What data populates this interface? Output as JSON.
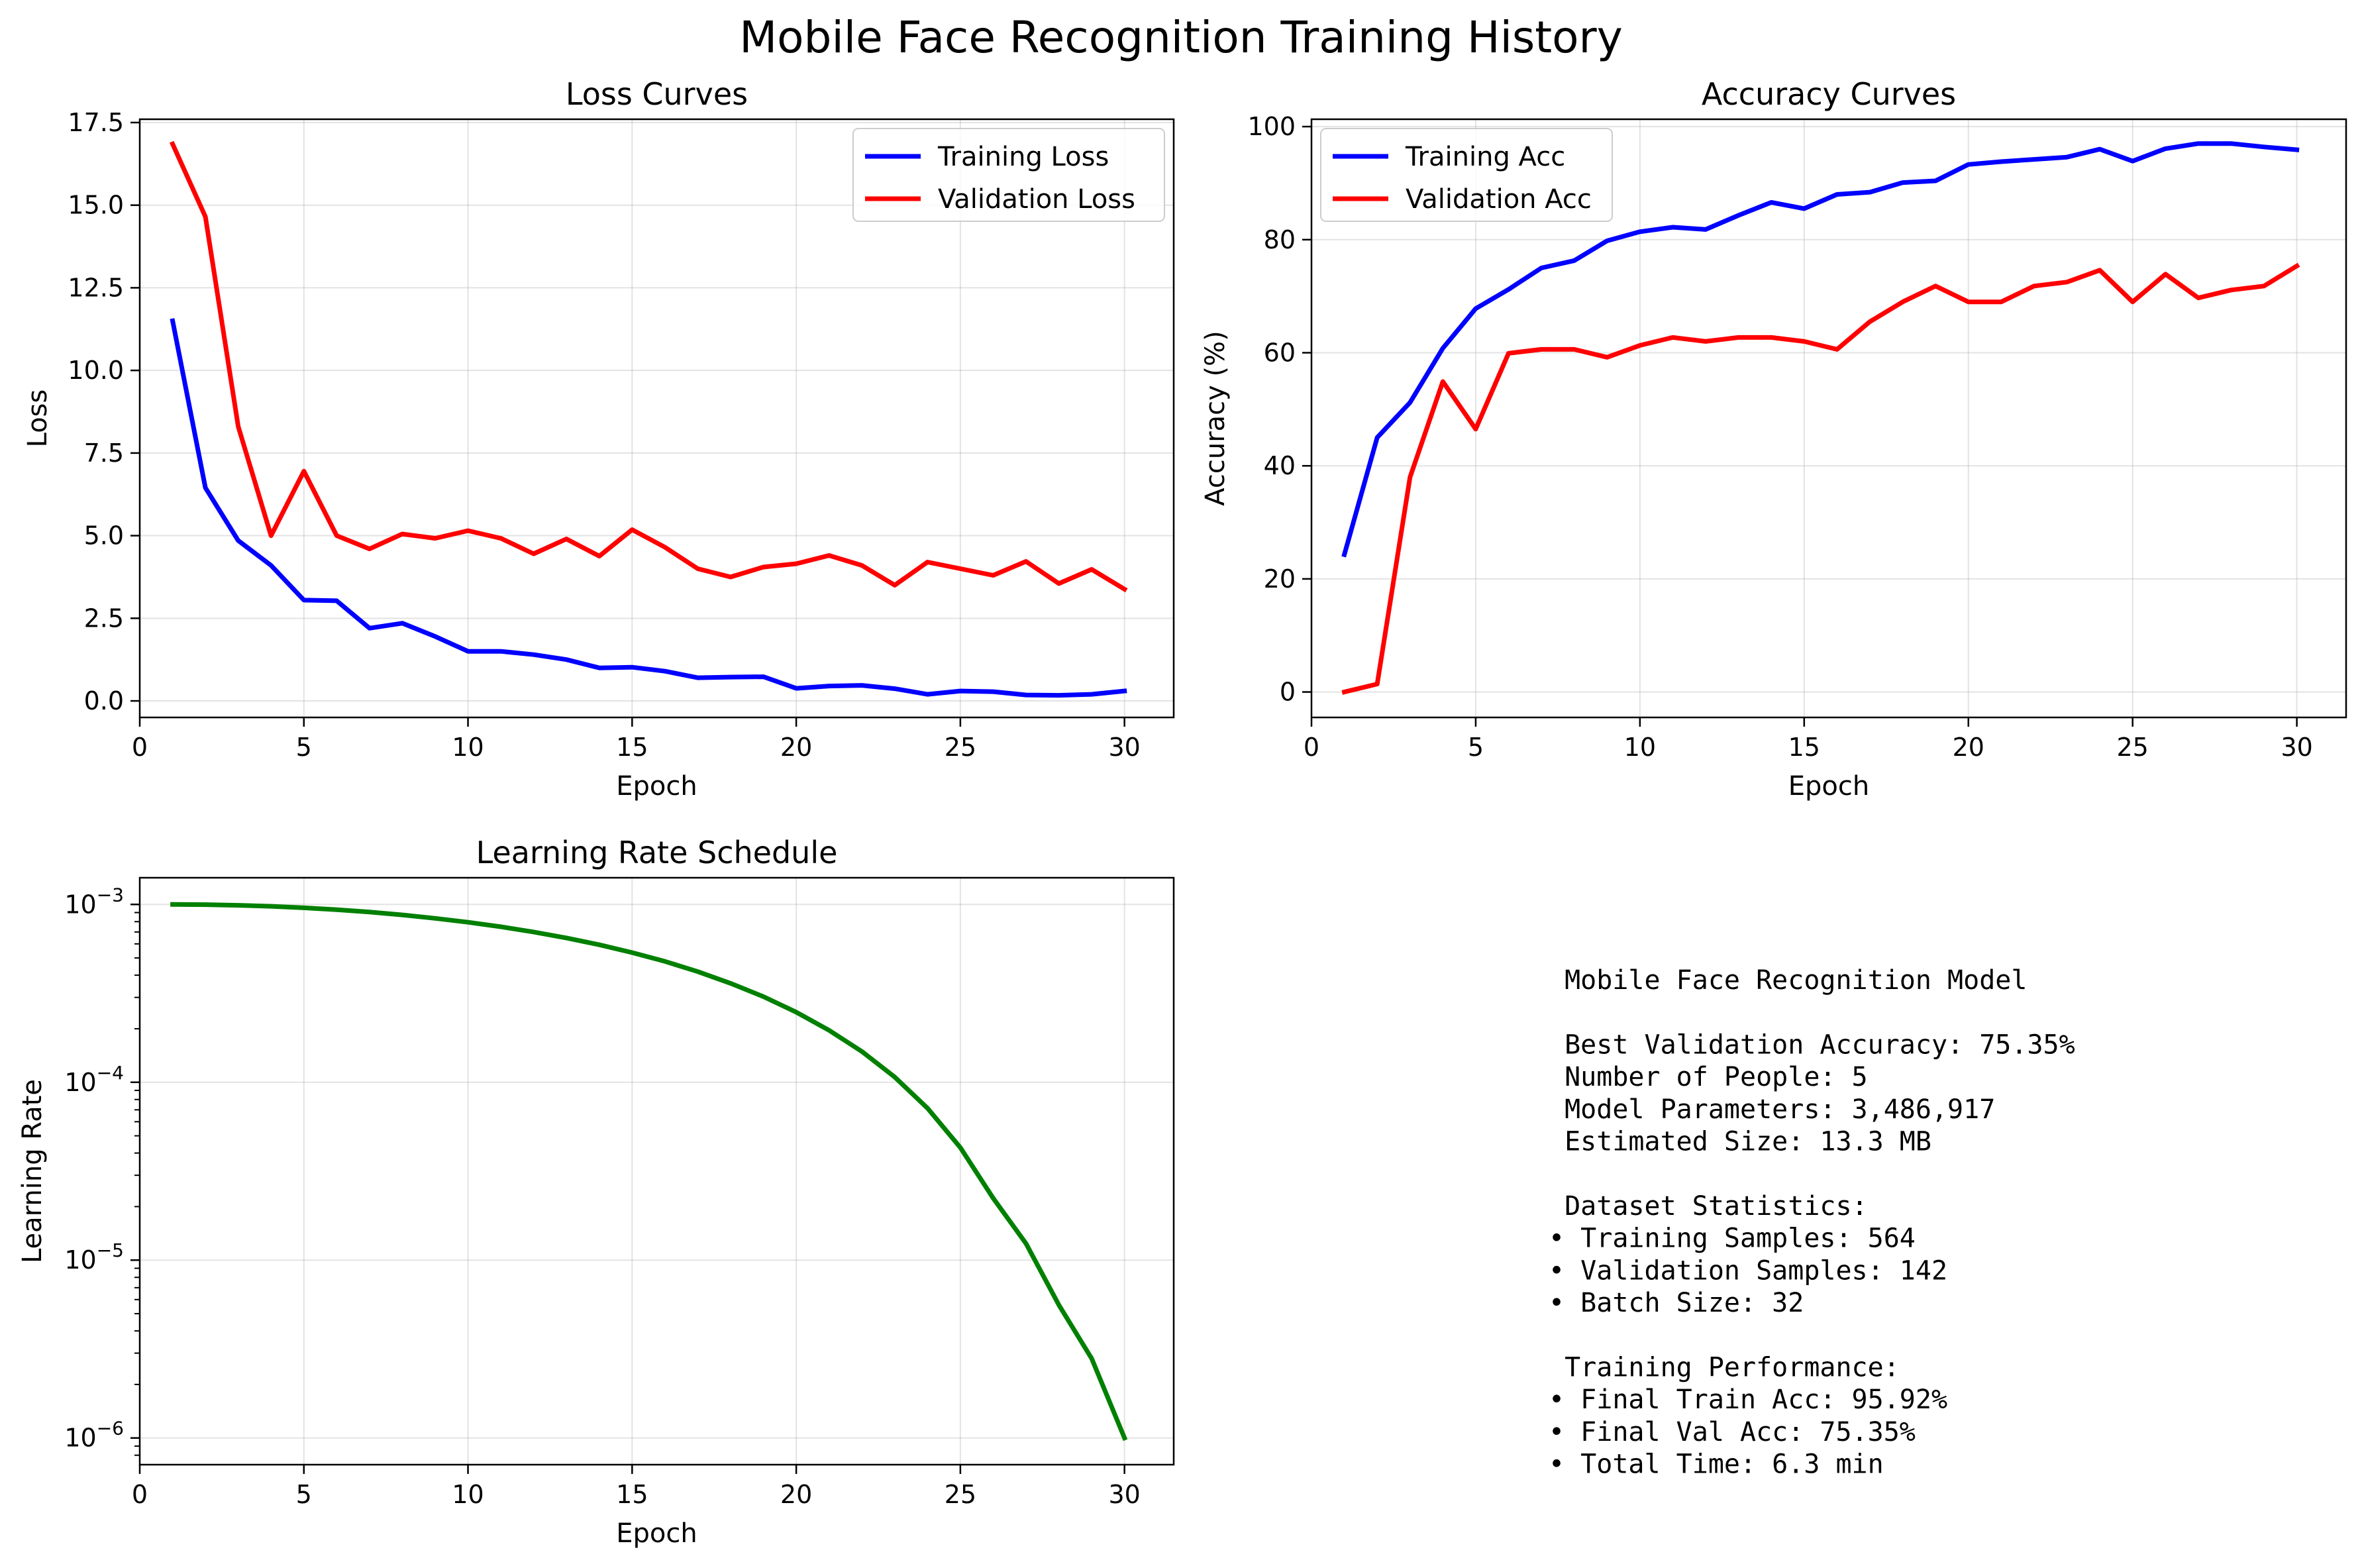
{
  "figure": {
    "title": "Mobile Face Recognition Training History"
  },
  "chart_data": [
    {
      "id": "loss",
      "type": "line",
      "title": "Loss Curves",
      "xlabel": "Epoch",
      "ylabel": "Loss",
      "xlim": [
        0,
        31.5
      ],
      "ylim": [
        -0.5,
        17.6
      ],
      "xticks": [
        0,
        5,
        10,
        15,
        20,
        25,
        30
      ],
      "yticks": [
        0.0,
        2.5,
        5.0,
        7.5,
        10.0,
        12.5,
        15.0,
        17.5
      ],
      "ytick_labels": [
        "0.0",
        "2.5",
        "5.0",
        "7.5",
        "10.0",
        "12.5",
        "15.0",
        "17.5"
      ],
      "grid": true,
      "legend": "upper-right",
      "x": [
        1,
        2,
        3,
        4,
        5,
        6,
        7,
        8,
        9,
        10,
        11,
        12,
        13,
        14,
        15,
        16,
        17,
        18,
        19,
        20,
        21,
        22,
        23,
        24,
        25,
        26,
        27,
        28,
        29,
        30
      ],
      "series": [
        {
          "name": "Training Loss",
          "color": "#0000ff",
          "values": [
            11.5,
            6.45,
            4.85,
            4.1,
            3.05,
            3.03,
            2.2,
            2.35,
            1.95,
            1.5,
            1.5,
            1.4,
            1.25,
            1.0,
            1.02,
            0.9,
            0.7,
            0.72,
            0.73,
            0.38,
            0.45,
            0.47,
            0.37,
            0.2,
            0.3,
            0.28,
            0.18,
            0.17,
            0.2,
            0.3
          ]
        },
        {
          "name": "Validation Loss",
          "color": "#ff0000",
          "values": [
            16.85,
            14.65,
            8.3,
            5.0,
            6.95,
            5.0,
            4.6,
            5.05,
            4.92,
            5.15,
            4.92,
            4.45,
            4.9,
            4.38,
            5.18,
            4.65,
            4.0,
            3.75,
            4.05,
            4.15,
            4.4,
            4.1,
            3.5,
            4.2,
            4.0,
            3.8,
            4.22,
            3.55,
            3.98,
            3.38
          ]
        }
      ]
    },
    {
      "id": "acc",
      "type": "line",
      "title": "Accuracy Curves",
      "xlabel": "Epoch",
      "ylabel": "Accuracy (%)",
      "xlim": [
        0,
        31.5
      ],
      "ylim": [
        -4.5,
        101.3
      ],
      "xticks": [
        0,
        5,
        10,
        15,
        20,
        25,
        30
      ],
      "yticks": [
        0,
        20,
        40,
        60,
        80,
        100
      ],
      "ytick_labels": [
        "0",
        "20",
        "40",
        "60",
        "80",
        "100"
      ],
      "grid": true,
      "legend": "upper-left",
      "x": [
        1,
        2,
        3,
        4,
        5,
        6,
        7,
        8,
        9,
        10,
        11,
        12,
        13,
        14,
        15,
        16,
        17,
        18,
        19,
        20,
        21,
        22,
        23,
        24,
        25,
        26,
        27,
        28,
        29,
        30
      ],
      "series": [
        {
          "name": "Training Acc",
          "color": "#0000ff",
          "values": [
            24.3,
            45.0,
            51.2,
            60.8,
            67.8,
            71.2,
            75.0,
            76.3,
            79.8,
            81.4,
            82.2,
            81.8,
            84.3,
            86.6,
            85.5,
            88.0,
            88.4,
            90.1,
            90.4,
            93.3,
            93.8,
            94.2,
            94.6,
            96.0,
            93.9,
            96.1,
            97.0,
            97.0,
            96.4,
            95.9
          ]
        },
        {
          "name": "Validation Acc",
          "color": "#ff0000",
          "values": [
            0.0,
            1.4,
            38.0,
            54.9,
            46.5,
            59.9,
            60.6,
            60.6,
            59.2,
            61.3,
            62.7,
            62.0,
            62.7,
            62.7,
            62.0,
            60.6,
            65.5,
            69.0,
            71.8,
            69.0,
            69.0,
            71.8,
            72.5,
            74.6,
            69.0,
            73.9,
            69.7,
            71.1,
            71.8,
            75.35
          ]
        }
      ]
    },
    {
      "id": "lr",
      "type": "line",
      "title": "Learning Rate Schedule",
      "xlabel": "Epoch",
      "ylabel": "Learning Rate",
      "xlim": [
        0,
        31.5
      ],
      "yscale": "log",
      "ylim_log10": [
        -6.15,
        -2.85
      ],
      "xticks": [
        0,
        5,
        10,
        15,
        20,
        25,
        30
      ],
      "yticks_exp": [
        -3,
        -4,
        -5,
        -6
      ],
      "ytick_base": "10",
      "grid": true,
      "x": [
        1,
        2,
        3,
        4,
        5,
        6,
        7,
        8,
        9,
        10,
        11,
        12,
        13,
        14,
        15,
        16,
        17,
        18,
        19,
        20,
        21,
        22,
        23,
        24,
        25,
        26,
        27,
        28,
        29,
        30
      ],
      "series": [
        {
          "name": "",
          "color": "#008000",
          "values": [
            0.001,
            0.000997,
            0.000989,
            0.000976,
            0.000957,
            0.000934,
            0.000906,
            0.000873,
            0.000835,
            0.000794,
            0.000749,
            0.0007,
            0.000648,
            0.000593,
            0.000536,
            0.000478,
            0.000419,
            0.00036,
            0.000303,
            0.000248,
            0.000196,
            0.000149,
            0.000107,
            7.15e-05,
            4.29e-05,
            2.23e-05,
            1.24e-05,
            5.6e-06,
            2.8e-06,
            1e-06
          ]
        }
      ]
    }
  ],
  "stats_panel": {
    "lines": [
      " Mobile Face Recognition Model",
      "",
      " Best Validation Accuracy: 75.35%",
      " Number of People: 5",
      " Model Parameters: 3,486,917",
      " Estimated Size: 13.3 MB",
      "",
      " Dataset Statistics:",
      "• Training Samples: 564",
      "• Validation Samples: 142",
      "• Batch Size: 32",
      "",
      " Training Performance:",
      "• Final Train Acc: 95.92%",
      "• Final Val Acc: 75.35%",
      "• Total Time: 6.3 min"
    ]
  }
}
